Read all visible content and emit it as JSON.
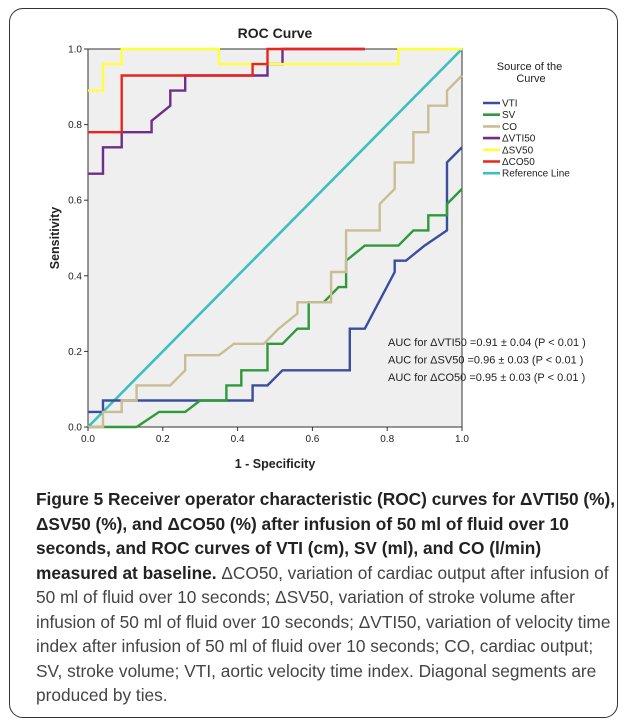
{
  "chart_data": {
    "type": "line",
    "title": "ROC Curve",
    "xlabel": "1 - Specificity",
    "ylabel": "Sensitivity",
    "xlim": [
      0,
      1
    ],
    "ylim": [
      0,
      1
    ],
    "x_ticks": [
      "0.0",
      "0.2",
      "0.4",
      "0.6",
      "0.8",
      "1.0"
    ],
    "y_ticks": [
      "0.0",
      "0.2",
      "0.4",
      "0.6",
      "0.8",
      "1.0"
    ],
    "grid": false,
    "background": "#efefef",
    "legend_title": "Source of the Curve",
    "legend_position": "right",
    "series": [
      {
        "name": "VTI",
        "color": "#3a4ea0",
        "points": [
          [
            0,
            0.04
          ],
          [
            0.04,
            0.04
          ],
          [
            0.04,
            0.07
          ],
          [
            0.44,
            0.07
          ],
          [
            0.44,
            0.11
          ],
          [
            0.48,
            0.11
          ],
          [
            0.52,
            0.15
          ],
          [
            0.7,
            0.15
          ],
          [
            0.7,
            0.26
          ],
          [
            0.74,
            0.26
          ],
          [
            0.82,
            0.41
          ],
          [
            0.82,
            0.44
          ],
          [
            0.85,
            0.44
          ],
          [
            0.9,
            0.48
          ],
          [
            0.96,
            0.52
          ],
          [
            0.96,
            0.7
          ],
          [
            1,
            0.74
          ]
        ]
      },
      {
        "name": "SV",
        "color": "#2e9a3a",
        "points": [
          [
            0,
            0
          ],
          [
            0.13,
            0
          ],
          [
            0.19,
            0.04
          ],
          [
            0.26,
            0.04
          ],
          [
            0.3,
            0.07
          ],
          [
            0.37,
            0.07
          ],
          [
            0.37,
            0.11
          ],
          [
            0.41,
            0.11
          ],
          [
            0.41,
            0.15
          ],
          [
            0.48,
            0.15
          ],
          [
            0.48,
            0.22
          ],
          [
            0.52,
            0.22
          ],
          [
            0.56,
            0.26
          ],
          [
            0.59,
            0.26
          ],
          [
            0.59,
            0.33
          ],
          [
            0.63,
            0.33
          ],
          [
            0.67,
            0.37
          ],
          [
            0.69,
            0.37
          ],
          [
            0.69,
            0.44
          ],
          [
            0.74,
            0.48
          ],
          [
            0.83,
            0.48
          ],
          [
            0.87,
            0.52
          ],
          [
            0.91,
            0.52
          ],
          [
            0.91,
            0.56
          ],
          [
            0.96,
            0.56
          ],
          [
            0.96,
            0.59
          ],
          [
            1,
            0.63
          ]
        ]
      },
      {
        "name": "CO",
        "color": "#cbbd93",
        "points": [
          [
            0,
            0
          ],
          [
            0.04,
            0
          ],
          [
            0.04,
            0.04
          ],
          [
            0.09,
            0.04
          ],
          [
            0.09,
            0.07
          ],
          [
            0.13,
            0.07
          ],
          [
            0.13,
            0.11
          ],
          [
            0.22,
            0.11
          ],
          [
            0.26,
            0.15
          ],
          [
            0.26,
            0.19
          ],
          [
            0.35,
            0.19
          ],
          [
            0.39,
            0.22
          ],
          [
            0.47,
            0.22
          ],
          [
            0.51,
            0.26
          ],
          [
            0.56,
            0.3
          ],
          [
            0.56,
            0.33
          ],
          [
            0.65,
            0.33
          ],
          [
            0.65,
            0.41
          ],
          [
            0.69,
            0.41
          ],
          [
            0.69,
            0.52
          ],
          [
            0.78,
            0.52
          ],
          [
            0.78,
            0.59
          ],
          [
            0.82,
            0.63
          ],
          [
            0.82,
            0.7
          ],
          [
            0.87,
            0.7
          ],
          [
            0.87,
            0.78
          ],
          [
            0.91,
            0.78
          ],
          [
            0.91,
            0.85
          ],
          [
            0.96,
            0.85
          ],
          [
            0.96,
            0.89
          ],
          [
            1,
            0.93
          ]
        ]
      },
      {
        "name": "ΔVTI50",
        "color": "#6e2d8c",
        "points": [
          [
            0,
            0.67
          ],
          [
            0.04,
            0.67
          ],
          [
            0.04,
            0.74
          ],
          [
            0.09,
            0.74
          ],
          [
            0.09,
            0.78
          ],
          [
            0.17,
            0.78
          ],
          [
            0.17,
            0.81
          ],
          [
            0.22,
            0.85
          ],
          [
            0.22,
            0.89
          ],
          [
            0.26,
            0.89
          ],
          [
            0.26,
            0.93
          ],
          [
            0.48,
            0.93
          ],
          [
            0.48,
            0.96
          ],
          [
            0.52,
            0.96
          ],
          [
            0.52,
            1
          ],
          [
            0.74,
            1
          ]
        ]
      },
      {
        "name": "ΔSV50",
        "color": "#ffff3c",
        "points": [
          [
            0,
            0.89
          ],
          [
            0.04,
            0.89
          ],
          [
            0.04,
            0.96
          ],
          [
            0.09,
            0.96
          ],
          [
            0.09,
            1
          ],
          [
            0.35,
            1
          ],
          [
            0.35,
            0.96
          ],
          [
            0.39,
            0.96
          ],
          [
            0.39,
            0.96
          ],
          [
            0.83,
            0.96
          ],
          [
            0.83,
            1
          ],
          [
            1,
            1
          ]
        ]
      },
      {
        "name": "ΔCO50",
        "color": "#e8261e",
        "points": [
          [
            0,
            0.78
          ],
          [
            0.09,
            0.78
          ],
          [
            0.09,
            0.93
          ],
          [
            0.44,
            0.93
          ],
          [
            0.44,
            0.96
          ],
          [
            0.48,
            0.96
          ],
          [
            0.48,
            1
          ],
          [
            0.74,
            1
          ]
        ]
      },
      {
        "name": "Reference Line",
        "color": "#3cbfbf",
        "points": [
          [
            0,
            0
          ],
          [
            1,
            1
          ]
        ]
      }
    ],
    "annotations": [
      "AUC for ΔVTI50 =0.91 ± 0.04 (P < 0.01 )",
      "AUC for ΔSV50 =0.96 ± 0.03 (P < 0.01 )",
      "AUC for ΔCO50 =0.95 ± 0.03 (P < 0.01 )"
    ]
  },
  "caption": {
    "bold": "Figure 5 Receiver operator characteristic (ROC) curves for ΔVTI50 (%), ΔSV50 (%), and ΔCO50 (%) after infusion of 50 ml of fluid over 10 seconds, and ROC curves of VTI (cm), SV (ml), and CO (l/min) measured at baseline.",
    "text": " ΔCO50, variation of cardiac output after infusion of 50 ml of fluid over 10 seconds; ΔSV50, variation of stroke volume after infusion of 50 ml of fluid over 10 seconds; ΔVTI50, variation of velocity time index after infusion of 50 ml of fluid over 10 seconds; CO, cardiac output; SV, stroke volume; VTI, aortic velocity time index. Diagonal segments are produced by ties."
  }
}
